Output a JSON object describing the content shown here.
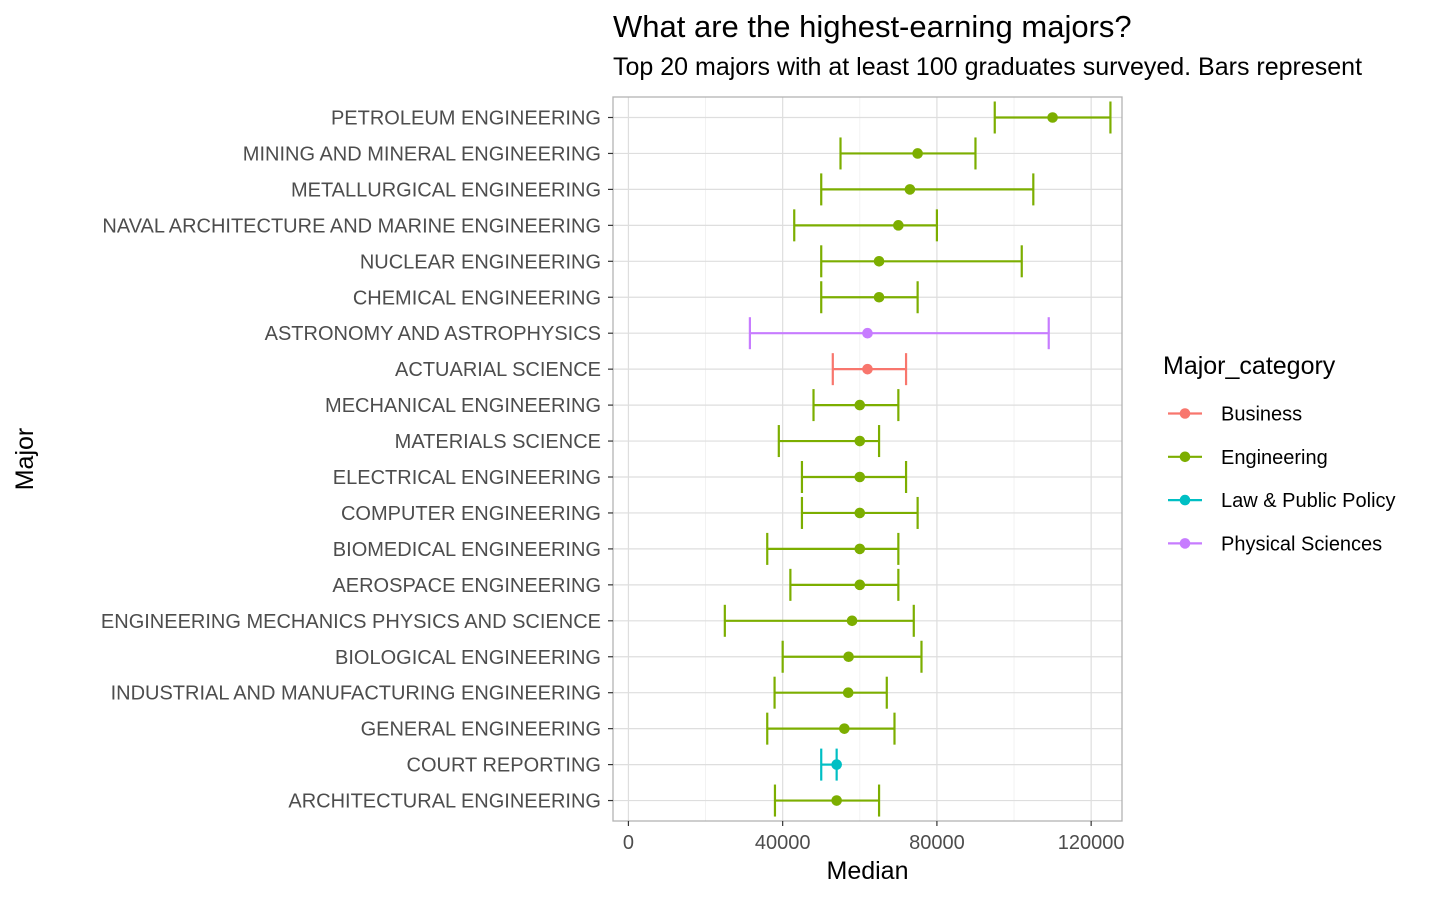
{
  "chart_data": {
    "type": "errorbar",
    "title": "What are the highest-earning majors?",
    "subtitle": "Top 20 majors with at least 100 graduates surveyed. Bars represent",
    "xlabel": "Median",
    "ylabel": "Major",
    "xlim": [
      -4000,
      128000
    ],
    "x_ticks": [
      0,
      40000,
      80000,
      120000
    ],
    "x_tick_labels": [
      "0",
      "40000",
      "80000",
      "120000"
    ],
    "grid": true,
    "legend": {
      "title": "Major_category",
      "placement": "right",
      "entries": [
        {
          "name": "Business",
          "color": "#F8766D"
        },
        {
          "name": "Engineering",
          "color": "#7CAE00"
        },
        {
          "name": "Law & Public Policy",
          "color": "#00BFC4"
        },
        {
          "name": "Physical Sciences",
          "color": "#C77CFF"
        }
      ]
    },
    "rows": [
      {
        "major": "PETROLEUM ENGINEERING",
        "category": "Engineering",
        "median": 110000,
        "p25": 95000,
        "p75": 125000
      },
      {
        "major": "MINING AND MINERAL ENGINEERING",
        "category": "Engineering",
        "median": 75000,
        "p25": 55000,
        "p75": 90000
      },
      {
        "major": "METALLURGICAL ENGINEERING",
        "category": "Engineering",
        "median": 73000,
        "p25": 50000,
        "p75": 105000
      },
      {
        "major": "NAVAL ARCHITECTURE AND MARINE ENGINEERING",
        "category": "Engineering",
        "median": 70000,
        "p25": 43000,
        "p75": 80000
      },
      {
        "major": "NUCLEAR ENGINEERING",
        "category": "Engineering",
        "median": 65000,
        "p25": 50000,
        "p75": 102000
      },
      {
        "major": "CHEMICAL ENGINEERING",
        "category": "Engineering",
        "median": 65000,
        "p25": 50000,
        "p75": 75000
      },
      {
        "major": "ASTRONOMY AND ASTROPHYSICS",
        "category": "Physical Sciences",
        "median": 62000,
        "p25": 31500,
        "p75": 109000
      },
      {
        "major": "ACTUARIAL SCIENCE",
        "category": "Business",
        "median": 62000,
        "p25": 53000,
        "p75": 72000
      },
      {
        "major": "MECHANICAL ENGINEERING",
        "category": "Engineering",
        "median": 60000,
        "p25": 48000,
        "p75": 70000
      },
      {
        "major": "MATERIALS SCIENCE",
        "category": "Engineering",
        "median": 60000,
        "p25": 39000,
        "p75": 65000
      },
      {
        "major": "ELECTRICAL ENGINEERING",
        "category": "Engineering",
        "median": 60000,
        "p25": 45000,
        "p75": 72000
      },
      {
        "major": "COMPUTER ENGINEERING",
        "category": "Engineering",
        "median": 60000,
        "p25": 45000,
        "p75": 75000
      },
      {
        "major": "BIOMEDICAL ENGINEERING",
        "category": "Engineering",
        "median": 60000,
        "p25": 36000,
        "p75": 70000
      },
      {
        "major": "AEROSPACE ENGINEERING",
        "category": "Engineering",
        "median": 60000,
        "p25": 42000,
        "p75": 70000
      },
      {
        "major": "ENGINEERING MECHANICS PHYSICS AND SCIENCE",
        "category": "Engineering",
        "median": 58000,
        "p25": 25000,
        "p75": 74000
      },
      {
        "major": "BIOLOGICAL ENGINEERING",
        "category": "Engineering",
        "median": 57100,
        "p25": 40000,
        "p75": 76000
      },
      {
        "major": "INDUSTRIAL AND MANUFACTURING ENGINEERING",
        "category": "Engineering",
        "median": 57000,
        "p25": 37900,
        "p75": 67000
      },
      {
        "major": "GENERAL ENGINEERING",
        "category": "Engineering",
        "median": 56000,
        "p25": 36000,
        "p75": 69000
      },
      {
        "major": "COURT REPORTING",
        "category": "Law & Public Policy",
        "median": 54000,
        "p25": 50000,
        "p75": 54000
      },
      {
        "major": "ARCHITECTURAL ENGINEERING",
        "category": "Engineering",
        "median": 54000,
        "p25": 38000,
        "p75": 65000
      }
    ]
  }
}
